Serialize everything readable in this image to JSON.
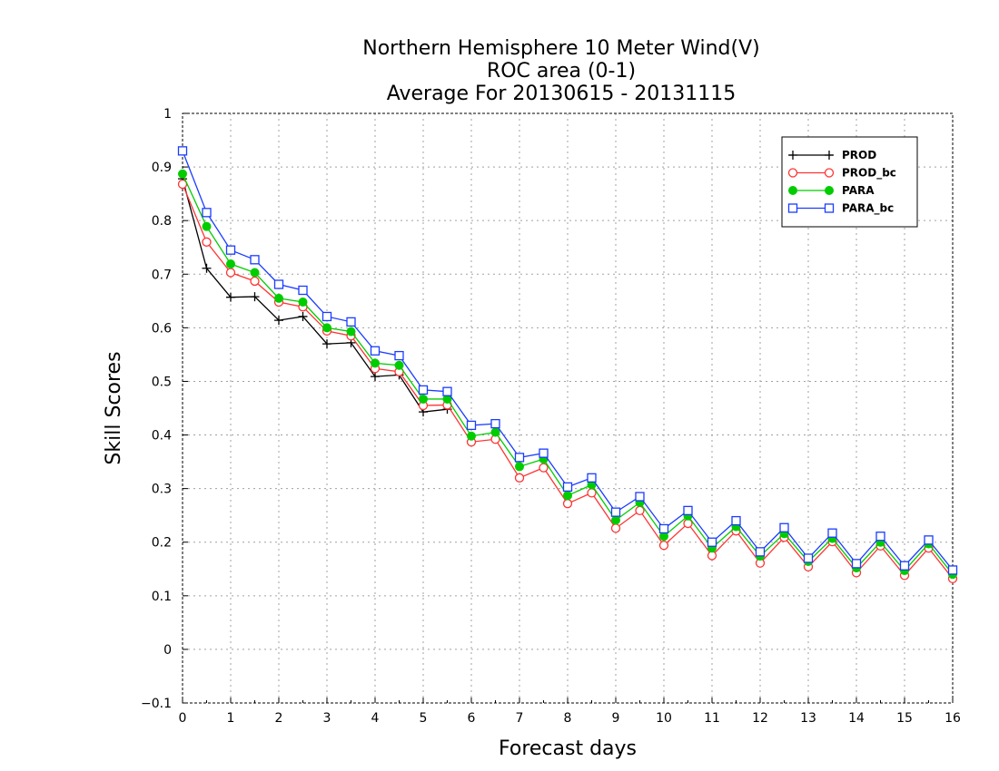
{
  "chart_data": {
    "type": "line",
    "title_lines": [
      "Northern Hemisphere 10 Meter Wind(V)",
      "ROC area (0-1)",
      "Average For 20130615 - 20131115"
    ],
    "xlabel": "Forecast days",
    "ylabel": "Skill Scores",
    "xlim": [
      0,
      16
    ],
    "ylim": [
      -0.1,
      1
    ],
    "xticks": [
      0,
      1,
      2,
      3,
      4,
      5,
      6,
      7,
      8,
      9,
      10,
      11,
      12,
      13,
      14,
      15,
      16
    ],
    "yticks": [
      -0.1,
      0,
      0.1,
      0.2,
      0.3,
      0.4,
      0.5,
      0.6,
      0.7,
      0.8,
      0.9,
      1
    ],
    "ytick_labels": [
      "−0.1",
      "0",
      "0.1",
      "0.2",
      "0.3",
      "0.4",
      "0.5",
      "0.6",
      "0.7",
      "0.8",
      "0.9",
      "1"
    ],
    "grid": true,
    "legend_position": "top-right",
    "x": [
      0,
      0.5,
      1,
      1.5,
      2,
      2.5,
      3,
      3.5,
      4,
      4.5,
      5,
      5.5,
      6,
      6.5,
      7,
      7.5,
      8,
      8.5,
      9,
      9.5,
      10,
      10.5,
      11,
      11.5,
      12,
      12.5,
      13,
      13.5,
      14,
      14.5,
      15,
      15.5,
      16
    ],
    "series": [
      {
        "name": "PROD",
        "color": "#000000",
        "marker": "plus",
        "values": [
          0.878,
          0.711,
          0.657,
          0.658,
          0.614,
          0.621,
          0.57,
          0.572,
          0.509,
          0.512,
          0.443,
          0.448,
          null,
          null,
          null,
          null,
          null,
          null,
          null,
          null,
          null,
          null,
          null,
          null,
          null,
          null,
          null,
          null,
          null,
          null,
          null,
          null,
          null
        ]
      },
      {
        "name": "PROD_bc",
        "color": "#ff3333",
        "marker": "circle-open",
        "values": [
          0.868,
          0.76,
          0.703,
          0.687,
          0.648,
          0.639,
          0.594,
          0.585,
          0.524,
          0.518,
          0.455,
          0.456,
          0.387,
          0.392,
          0.32,
          0.339,
          0.272,
          0.292,
          0.226,
          0.259,
          0.194,
          0.235,
          0.175,
          0.221,
          0.161,
          0.209,
          0.154,
          0.201,
          0.143,
          0.193,
          0.138,
          0.189,
          0.132
        ]
      },
      {
        "name": "PARA",
        "color": "#00cc00",
        "marker": "circle-filled",
        "values": [
          0.887,
          0.789,
          0.719,
          0.703,
          0.655,
          0.648,
          0.6,
          0.593,
          0.534,
          0.53,
          0.467,
          0.467,
          0.398,
          0.405,
          0.341,
          0.355,
          0.287,
          0.307,
          0.241,
          0.274,
          0.211,
          0.249,
          0.189,
          0.229,
          0.174,
          0.216,
          0.164,
          0.207,
          0.152,
          0.2,
          0.147,
          0.197,
          0.14
        ]
      },
      {
        "name": "PARA_bc",
        "color": "#1a3cff",
        "marker": "square-open",
        "values": [
          0.93,
          0.815,
          0.745,
          0.727,
          0.681,
          0.67,
          0.621,
          0.611,
          0.557,
          0.548,
          0.484,
          0.481,
          0.418,
          0.421,
          0.358,
          0.366,
          0.303,
          0.32,
          0.256,
          0.285,
          0.225,
          0.259,
          0.2,
          0.24,
          0.182,
          0.227,
          0.17,
          0.217,
          0.16,
          0.211,
          0.156,
          0.204,
          0.148
        ]
      }
    ]
  }
}
